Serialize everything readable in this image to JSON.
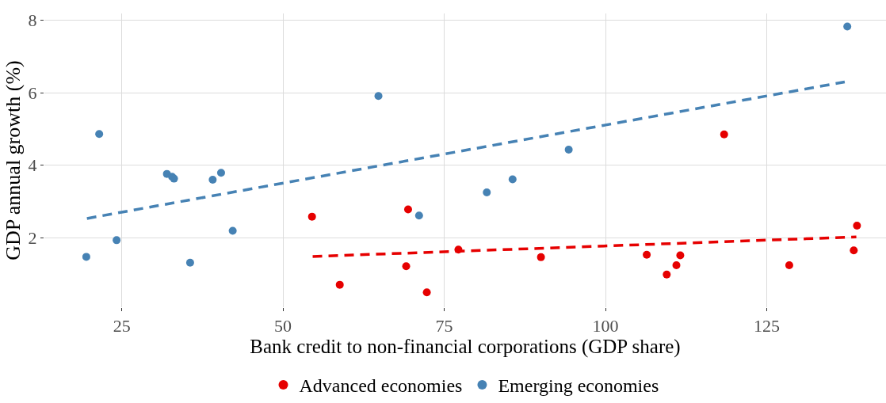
{
  "chart_data": {
    "type": "scatter",
    "xlabel": "Bank credit to non-financial corporations (GDP share)",
    "ylabel": "GDP annual growth (%)",
    "xlim": [
      13,
      143.5
    ],
    "ylim": [
      0.08,
      8.19
    ],
    "xticks": [
      25,
      50,
      75,
      100,
      125
    ],
    "yticks": [
      2,
      4,
      6,
      8
    ],
    "grid": true,
    "legend": "bottom",
    "series": [
      {
        "name": "Advanced economies",
        "color": "#e60000",
        "marker": "circle",
        "x": [
          54.5,
          58.8,
          69.1,
          69.4,
          72.3,
          77.2,
          90.0,
          106.4,
          109.5,
          111.0,
          111.6,
          118.4,
          128.5,
          138.5,
          139.0
        ],
        "values": [
          2.58,
          0.7,
          1.21,
          2.78,
          0.49,
          1.67,
          1.46,
          1.53,
          0.98,
          1.24,
          1.51,
          4.85,
          1.24,
          1.65,
          2.33
        ]
      },
      {
        "name": "Emerging economies",
        "color": "#4682b4",
        "marker": "circle",
        "x": [
          19.5,
          21.5,
          24.2,
          32.0,
          32.8,
          33.1,
          35.6,
          39.1,
          40.4,
          42.2,
          64.8,
          71.1,
          81.6,
          85.6,
          94.3,
          137.5
        ],
        "values": [
          1.47,
          4.86,
          1.93,
          3.76,
          3.68,
          3.63,
          1.31,
          3.6,
          3.79,
          2.19,
          5.91,
          2.61,
          3.25,
          3.61,
          4.43,
          7.83
        ]
      },
      {
        "type": "line",
        "color": "#e60000",
        "line_style": "dashed",
        "x": [
          54.6,
          138.9
        ],
        "values": [
          1.48,
          2.02
        ]
      },
      {
        "type": "line",
        "color": "#4682b4",
        "line_style": "dashed",
        "x": [
          19.6,
          137.1
        ],
        "values": [
          2.53,
          6.3
        ]
      }
    ]
  }
}
